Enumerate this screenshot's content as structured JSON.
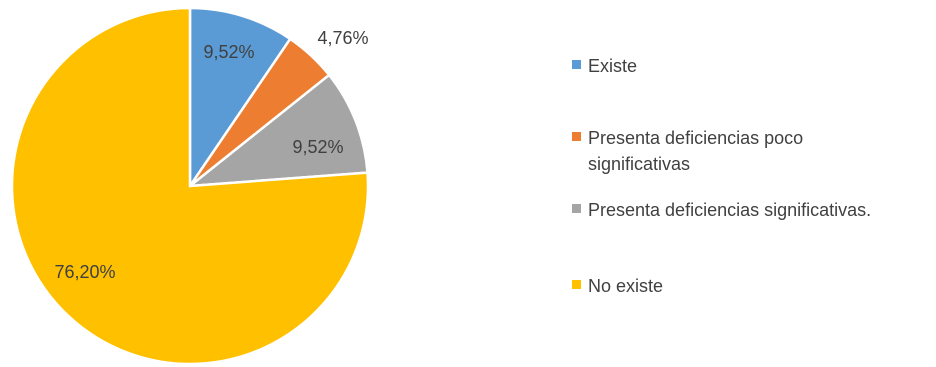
{
  "chart_data": {
    "type": "pie",
    "title": "",
    "categories": [
      "Existe",
      "Presenta deficiencias poco significativas",
      "Presenta deficiencias significativas.",
      "No existe"
    ],
    "values": [
      9.52,
      4.76,
      9.52,
      76.2
    ],
    "data_labels": [
      "9,52%",
      "4,76%",
      "9,52%",
      "76,20%"
    ],
    "colors": [
      "#5B9BD5",
      "#ED7D31",
      "#A5A5A5",
      "#FFC000"
    ],
    "start_angle": "12 o'clock",
    "direction": "clockwise",
    "legend_position": "right"
  },
  "legend": {
    "items": [
      {
        "label": "Existe",
        "color": "#5B9BD5"
      },
      {
        "label": "Presenta deficiencias poco significativas",
        "color": "#ED7D31"
      },
      {
        "label": "Presenta deficiencias significativas.",
        "color": "#A5A5A5"
      },
      {
        "label": "No existe",
        "color": "#FFC000"
      }
    ]
  }
}
